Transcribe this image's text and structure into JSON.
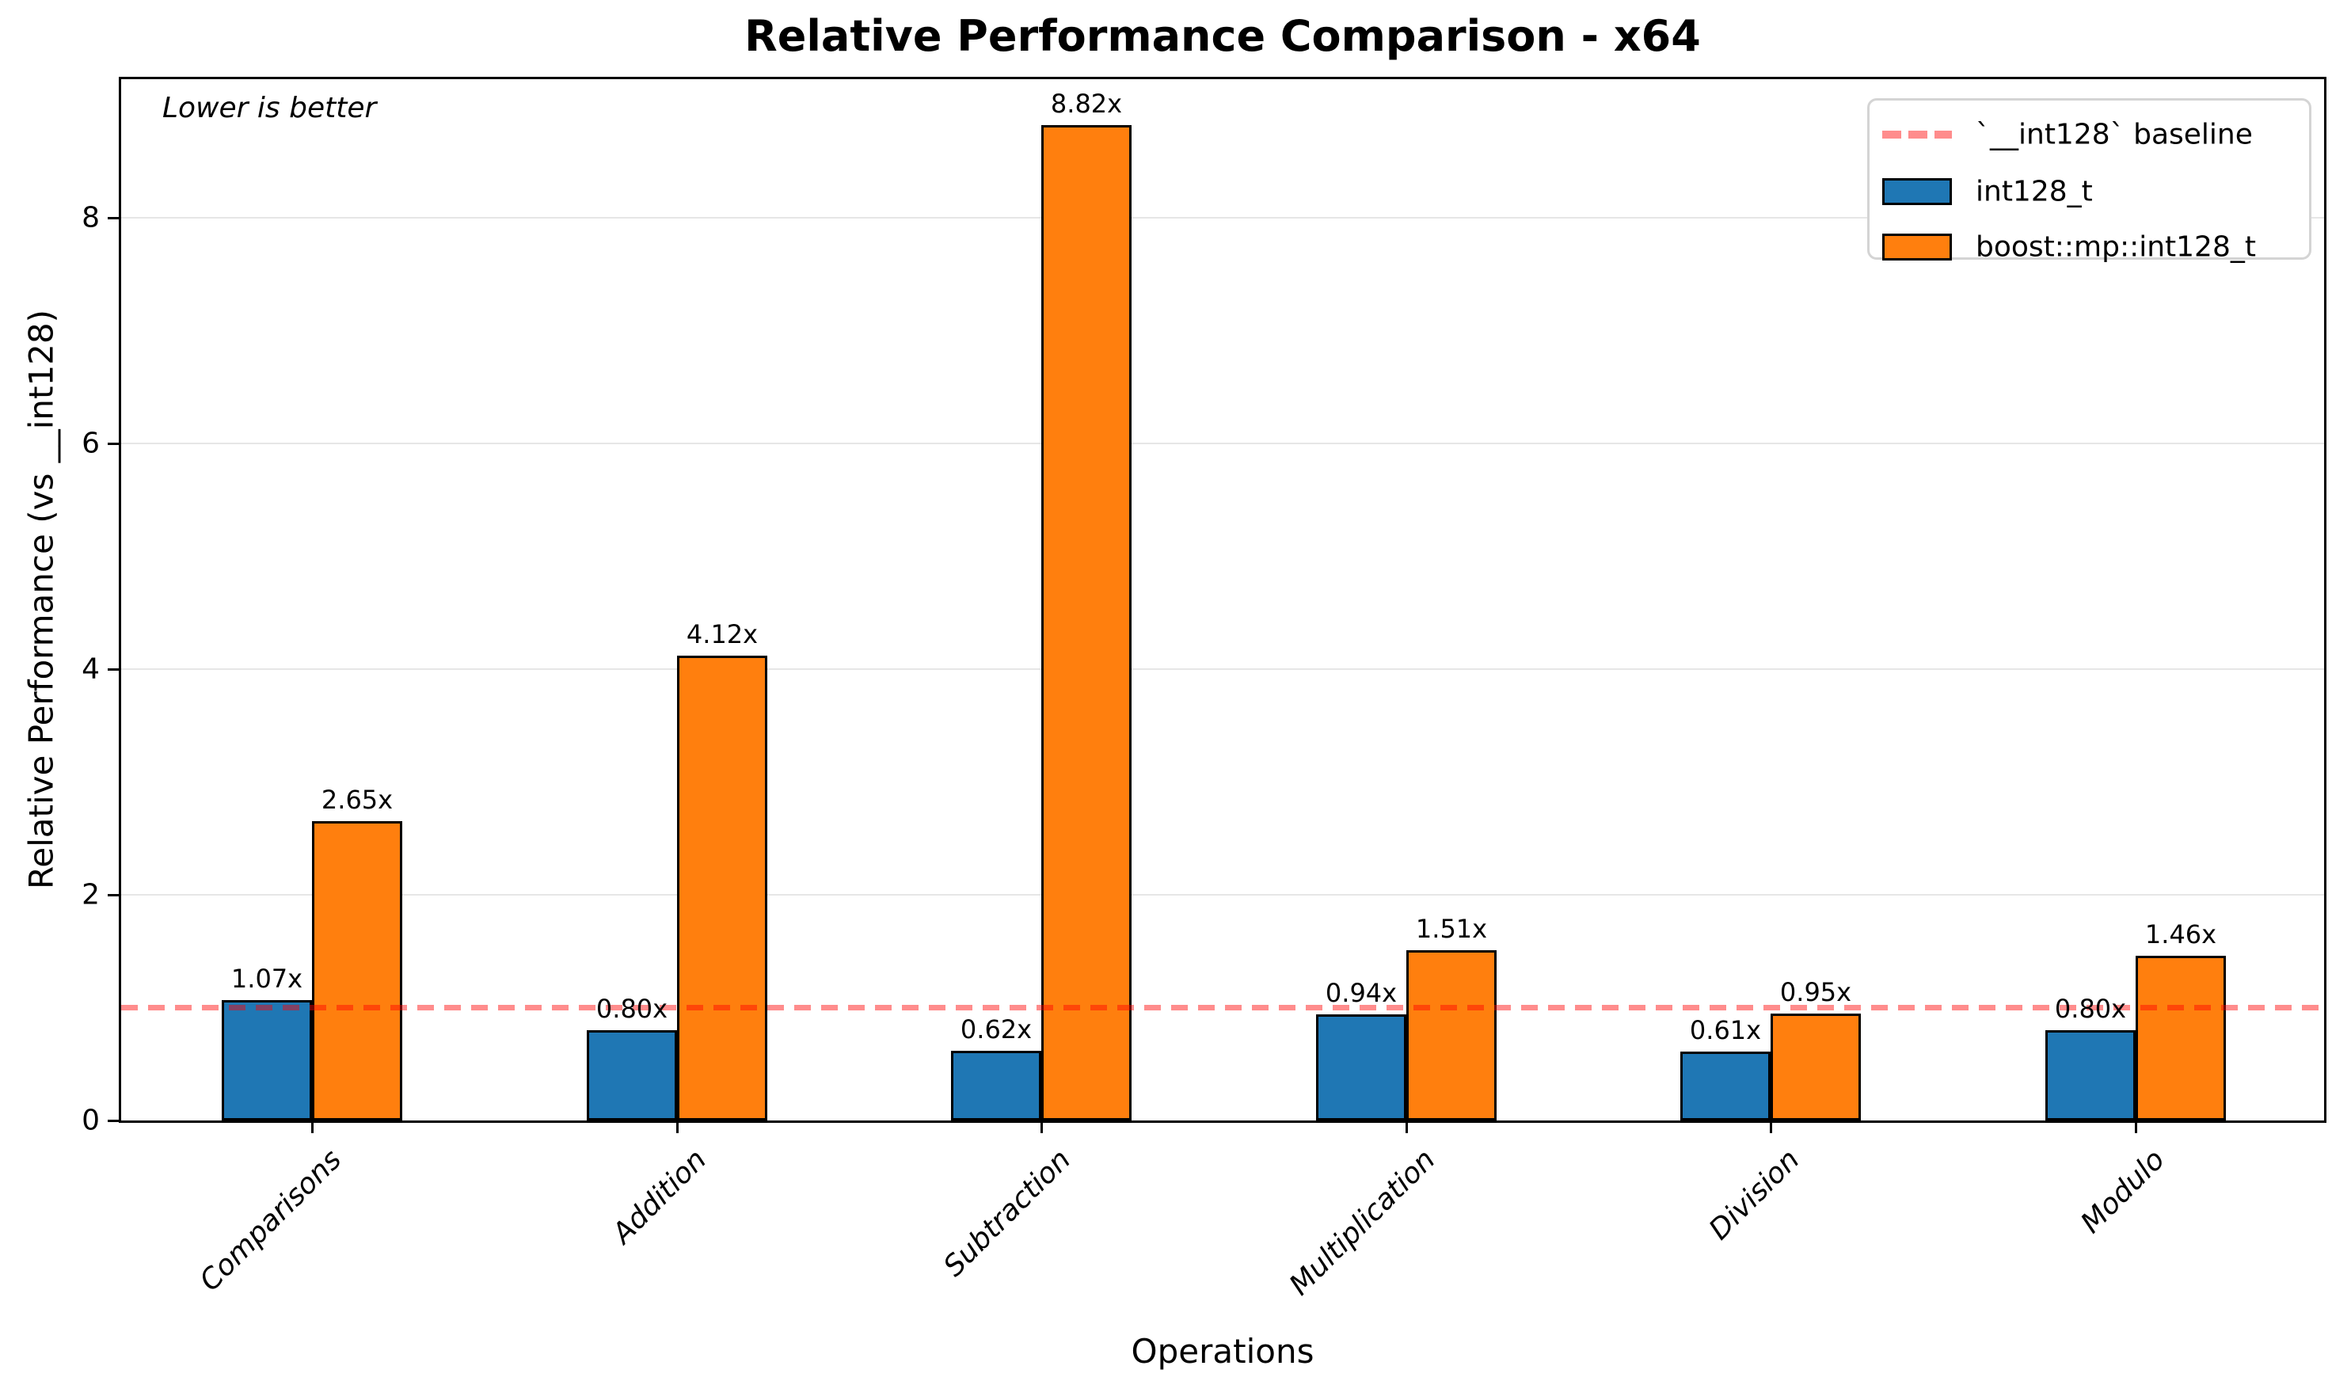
{
  "chart_data": {
    "type": "bar",
    "title": "Relative Performance Comparison - x64",
    "xlabel": "Operations",
    "ylabel": "Relative Performance (vs __int128)",
    "annotation": "Lower is better",
    "categories": [
      "Comparisons",
      "Addition",
      "Subtraction",
      "Multiplication",
      "Division",
      "Modulo"
    ],
    "series": [
      {
        "name": "int128_t",
        "color": "#1f77b4",
        "values": [
          1.07,
          0.8,
          0.62,
          0.94,
          0.61,
          0.8
        ],
        "value_labels": [
          "1.07x",
          "0.80x",
          "0.62x",
          "0.94x",
          "0.61x",
          "0.80x"
        ]
      },
      {
        "name": "boost::mp::int128_t",
        "color": "#ff7f0e",
        "values": [
          2.65,
          4.12,
          8.82,
          1.51,
          0.95,
          1.46
        ],
        "value_labels": [
          "2.65x",
          "4.12x",
          "8.82x",
          "1.51x",
          "0.95x",
          "1.46x"
        ]
      }
    ],
    "baseline": {
      "value": 1,
      "label": "`__int128` baseline",
      "color": "#ff5555"
    },
    "yticks": [
      0,
      2,
      4,
      6,
      8
    ],
    "ylim": [
      0,
      9.23
    ],
    "grid": true,
    "legend_position": "upper right"
  }
}
